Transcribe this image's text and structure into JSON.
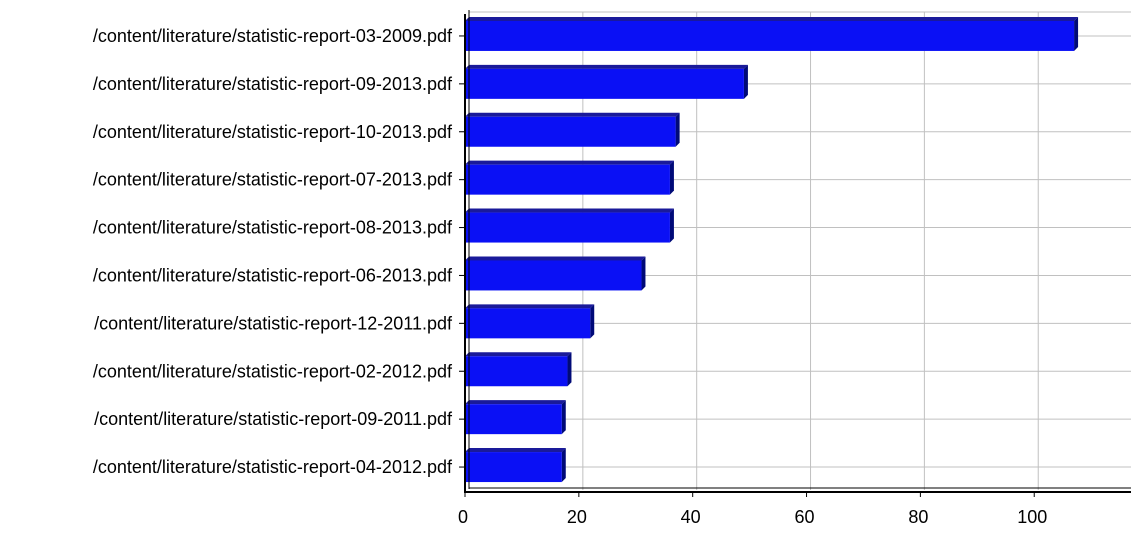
{
  "chart_data": {
    "type": "bar",
    "orientation": "horizontal",
    "title": "",
    "xlabel": "",
    "ylabel": "",
    "categories": [
      "/content/literature/statistic-report-03-2009.pdf",
      "/content/literature/statistic-report-09-2013.pdf",
      "/content/literature/statistic-report-10-2013.pdf",
      "/content/literature/statistic-report-07-2013.pdf",
      "/content/literature/statistic-report-08-2013.pdf",
      "/content/literature/statistic-report-06-2013.pdf",
      "/content/literature/statistic-report-12-2011.pdf",
      "/content/literature/statistic-report-02-2012.pdf",
      "/content/literature/statistic-report-09-2011.pdf",
      "/content/literature/statistic-report-04-2012.pdf"
    ],
    "values": [
      107,
      49,
      37,
      36,
      36,
      31,
      22,
      18,
      17,
      17
    ],
    "xlim": [
      0,
      117
    ],
    "xticks": [
      0,
      20,
      40,
      60,
      80,
      100
    ],
    "grid": true,
    "legend": "none",
    "colors": {
      "bar": "#0a10f5",
      "bar_side": "#000a78",
      "bar_top": "#1a1a9a",
      "grid": "#c0c0c0",
      "axis": "#000000"
    }
  }
}
